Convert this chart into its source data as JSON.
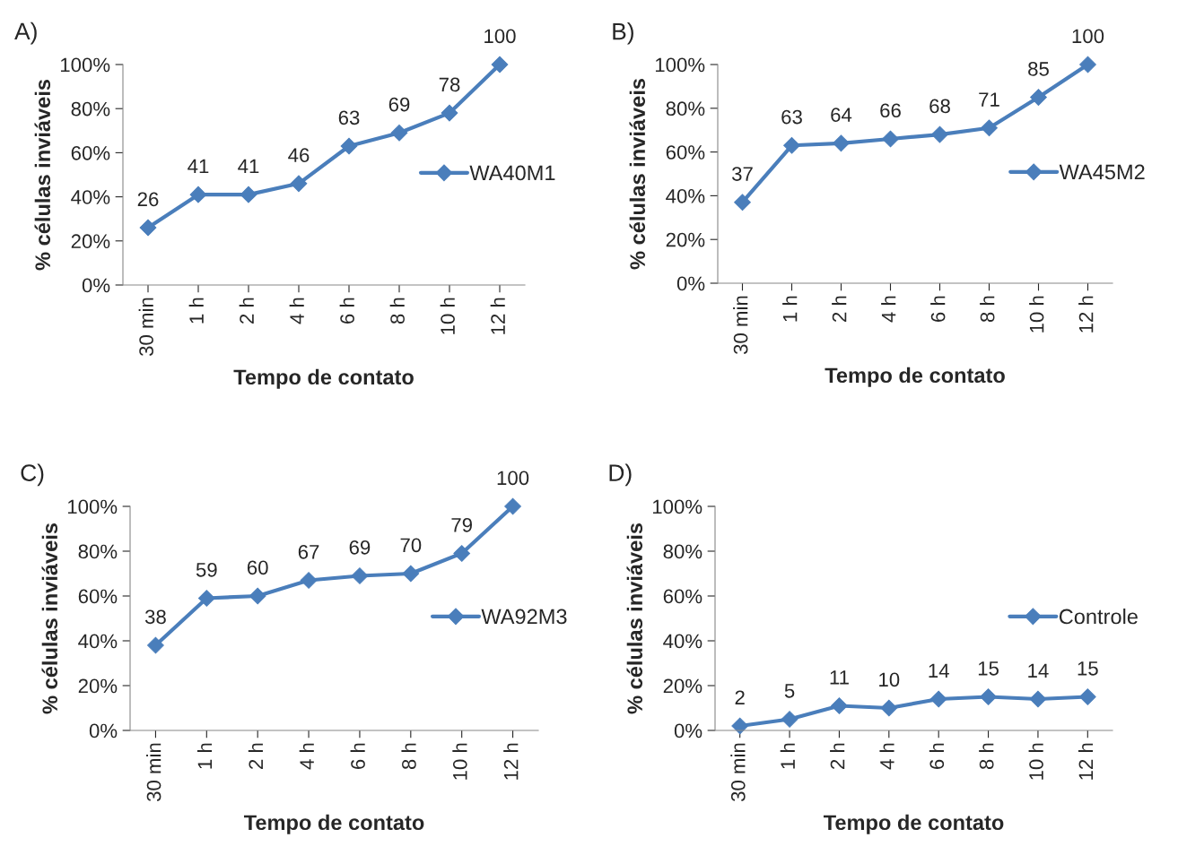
{
  "chart_data": [
    {
      "type": "line",
      "title": "A)",
      "xlabel": "Tempo de contato",
      "ylabel": "% células inviáveis",
      "categories": [
        "30 min",
        "1 h",
        "2 h",
        "4 h",
        "6 h",
        "8 h",
        "10 h",
        "12 h"
      ],
      "series": [
        {
          "name": "WA40M1",
          "color": "#4a7ebb",
          "values": [
            26,
            41,
            41,
            46,
            63,
            69,
            78,
            100
          ]
        }
      ],
      "ylim": [
        0,
        100
      ],
      "yticks": [
        {
          "value": 0,
          "label": "0%"
        },
        {
          "value": 20,
          "label": "20%"
        },
        {
          "value": 40,
          "label": "40%"
        },
        {
          "value": 60,
          "label": "60%"
        },
        {
          "value": 80,
          "label": "80%"
        },
        {
          "value": 100,
          "label": "100%"
        }
      ],
      "marker": "diamond",
      "data_labels": true,
      "legend": "right",
      "grid": false
    },
    {
      "type": "line",
      "title": "B)",
      "xlabel": "Tempo de contato",
      "ylabel": "% células inviáveis",
      "categories": [
        "30 min",
        "1 h",
        "2 h",
        "4 h",
        "6 h",
        "8 h",
        "10 h",
        "12 h"
      ],
      "series": [
        {
          "name": "WA45M2",
          "color": "#4a7ebb",
          "values": [
            37,
            63,
            64,
            66,
            68,
            71,
            85,
            100
          ]
        }
      ],
      "ylim": [
        0,
        100
      ],
      "yticks": [
        {
          "value": 0,
          "label": "0%"
        },
        {
          "value": 20,
          "label": "20%"
        },
        {
          "value": 40,
          "label": "40%"
        },
        {
          "value": 60,
          "label": "60%"
        },
        {
          "value": 80,
          "label": "80%"
        },
        {
          "value": 100,
          "label": "100%"
        }
      ],
      "marker": "diamond",
      "data_labels": true,
      "legend": "right",
      "grid": false
    },
    {
      "type": "line",
      "title": "C)",
      "xlabel": "Tempo de contato",
      "ylabel": "% células inviáveis",
      "categories": [
        "30 min",
        "1 h",
        "2 h",
        "4 h",
        "6 h",
        "8 h",
        "10 h",
        "12 h"
      ],
      "series": [
        {
          "name": "WA92M3",
          "color": "#4a7ebb",
          "values": [
            38,
            59,
            60,
            67,
            69,
            70,
            79,
            100
          ]
        }
      ],
      "ylim": [
        0,
        100
      ],
      "yticks": [
        {
          "value": 0,
          "label": "0%"
        },
        {
          "value": 20,
          "label": "20%"
        },
        {
          "value": 40,
          "label": "40%"
        },
        {
          "value": 60,
          "label": "60%"
        },
        {
          "value": 80,
          "label": "80%"
        },
        {
          "value": 100,
          "label": "100%"
        }
      ],
      "marker": "diamond",
      "data_labels": true,
      "legend": "right",
      "grid": false
    },
    {
      "type": "line",
      "title": "D)",
      "xlabel": "Tempo de contato",
      "ylabel": "% células inviáveis",
      "categories": [
        "30 min",
        "1 h",
        "2 h",
        "4 h",
        "6 h",
        "8 h",
        "10 h",
        "12 h"
      ],
      "series": [
        {
          "name": "Controle",
          "color": "#4a7ebb",
          "values": [
            2,
            5,
            11,
            10,
            14,
            15,
            14,
            15
          ]
        }
      ],
      "ylim": [
        0,
        100
      ],
      "yticks": [
        {
          "value": 0,
          "label": "0%"
        },
        {
          "value": 20,
          "label": "20%"
        },
        {
          "value": 40,
          "label": "40%"
        },
        {
          "value": 60,
          "label": "60%"
        },
        {
          "value": 80,
          "label": "80%"
        },
        {
          "value": 100,
          "label": "100%"
        }
      ],
      "marker": "diamond",
      "data_labels": true,
      "legend": "right",
      "grid": false
    }
  ]
}
